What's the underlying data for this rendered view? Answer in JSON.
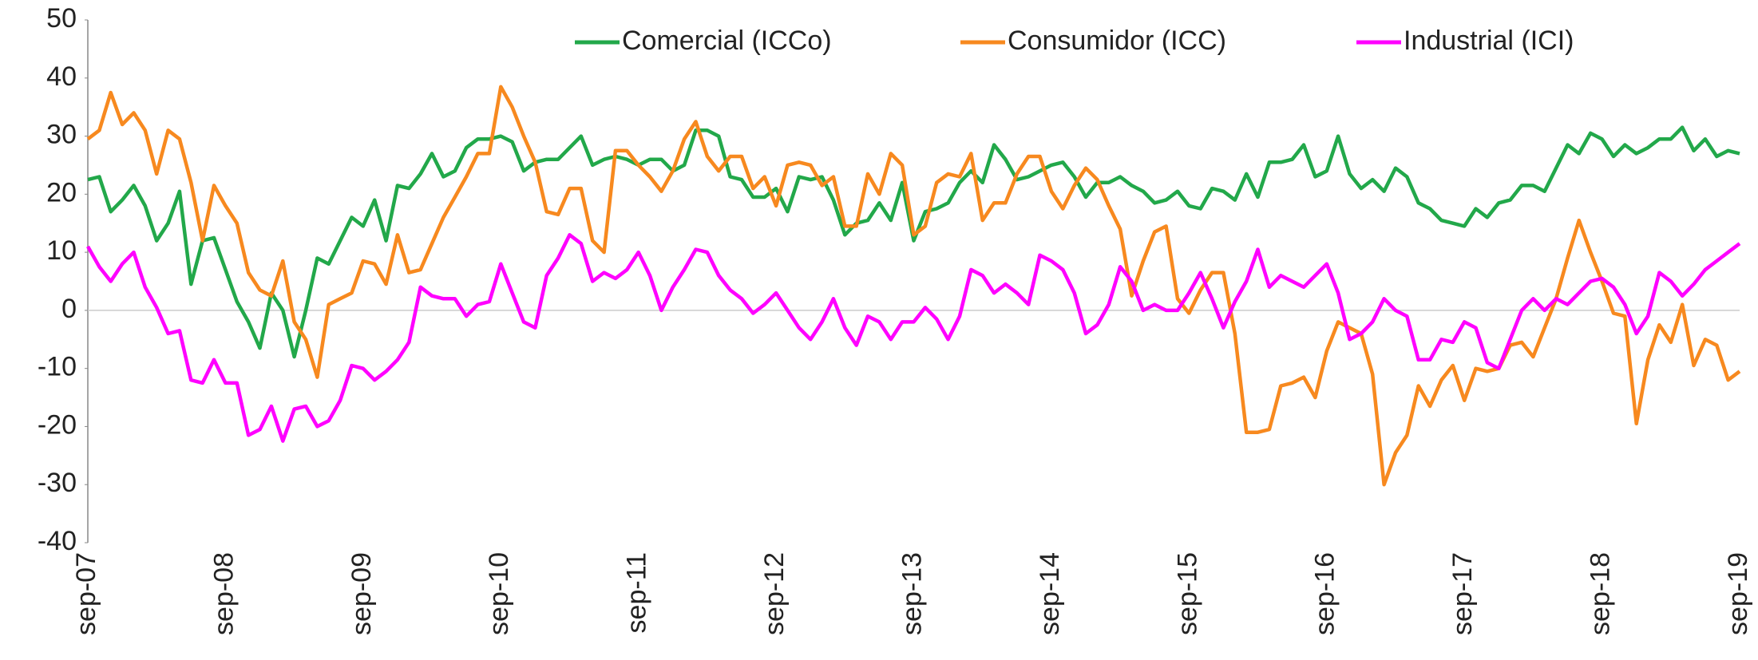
{
  "chart_data": {
    "type": "line",
    "categories": [
      "sep-07",
      null,
      null,
      null,
      null,
      null,
      null,
      null,
      null,
      null,
      null,
      null,
      "sep-08",
      null,
      null,
      null,
      null,
      null,
      null,
      null,
      null,
      null,
      null,
      null,
      "sep-09",
      null,
      null,
      null,
      null,
      null,
      null,
      null,
      null,
      null,
      null,
      null,
      "sep-10",
      null,
      null,
      null,
      null,
      null,
      null,
      null,
      null,
      null,
      null,
      null,
      "sep-11",
      null,
      null,
      null,
      null,
      null,
      null,
      null,
      null,
      null,
      null,
      null,
      "sep-12",
      null,
      null,
      null,
      null,
      null,
      null,
      null,
      null,
      null,
      null,
      null,
      "sep-13",
      null,
      null,
      null,
      null,
      null,
      null,
      null,
      null,
      null,
      null,
      null,
      "sep-14",
      null,
      null,
      null,
      null,
      null,
      null,
      null,
      null,
      null,
      null,
      null,
      "sep-15",
      null,
      null,
      null,
      null,
      null,
      null,
      null,
      null,
      null,
      null,
      null,
      "sep-16",
      null,
      null,
      null,
      null,
      null,
      null,
      null,
      null,
      null,
      null,
      null,
      "sep-17",
      null,
      null,
      null,
      null,
      null,
      null,
      null,
      null,
      null,
      null,
      null,
      "sep-18",
      null,
      null,
      null,
      null,
      null,
      null,
      null,
      null,
      null,
      null,
      null,
      "sep-19"
    ],
    "series": [
      {
        "name": "Comercial (ICCo)",
        "color": "#22a84a",
        "values": [
          22.5,
          23,
          17,
          19,
          21.5,
          18,
          12,
          15,
          20.5,
          4.5,
          12,
          12.5,
          7,
          1.5,
          -2,
          -6.5,
          3,
          0,
          -8,
          0,
          9,
          8,
          12,
          16,
          14.5,
          19,
          12,
          21.5,
          21,
          23.5,
          27,
          23,
          24,
          28,
          29.5,
          29.5,
          30,
          29,
          24,
          25.5,
          26,
          26,
          28,
          30,
          25,
          26,
          26.5,
          26,
          25,
          26,
          26,
          24,
          25,
          31,
          31,
          30,
          23,
          22.5,
          19.5,
          19.5,
          21,
          17,
          23,
          22.5,
          23,
          19,
          13,
          15,
          15.5,
          18.5,
          15.5,
          22,
          12,
          17,
          17.5,
          18.5,
          22,
          24,
          22,
          28.5,
          26,
          22.5,
          23,
          24,
          25,
          25.5,
          23,
          19.5,
          22,
          22,
          23,
          21.5,
          20.5,
          18.5,
          19,
          20.5,
          18,
          17.5,
          21,
          20.5,
          19,
          23.5,
          19.5,
          25.5,
          25.5,
          26,
          28.5,
          23,
          24,
          30,
          23.5,
          21,
          22.5,
          20.5,
          24.5,
          23,
          18.5,
          17.5,
          15.5,
          15,
          14.5,
          17.5,
          16,
          18.5,
          19,
          21.5,
          21.5,
          20.5,
          24.5,
          28.5,
          27,
          30.5,
          29.5,
          26.5,
          28.5,
          27,
          28,
          29.5,
          29.5,
          31.5,
          27.5,
          29.5,
          26.5,
          27.5,
          27
        ]
      },
      {
        "name": "Consumidor (ICC)",
        "color": "#f7891f",
        "values": [
          29.5,
          31,
          37.5,
          32,
          34,
          31,
          23.5,
          31,
          29.5,
          22,
          12,
          21.5,
          18,
          15,
          6.5,
          3.5,
          2.5,
          8.5,
          -2,
          -5,
          -11.5,
          1,
          2,
          3,
          8.5,
          8,
          4.5,
          13,
          6.5,
          7,
          11.5,
          16,
          19.5,
          23,
          27,
          27,
          38.5,
          35,
          30,
          25.5,
          17,
          16.5,
          21,
          21,
          12,
          10,
          27.5,
          27.5,
          25,
          23,
          20.5,
          24,
          29.5,
          32.5,
          26.5,
          24,
          26.5,
          26.5,
          21,
          23,
          18,
          25,
          25.5,
          25,
          21.5,
          23,
          14.5,
          14.5,
          23.5,
          20,
          27,
          25,
          13,
          14.5,
          22,
          23.5,
          23,
          27,
          15.5,
          18.5,
          18.5,
          23.5,
          26.5,
          26.5,
          20.5,
          17.5,
          21.5,
          24.5,
          22.5,
          18,
          14,
          2.5,
          8.5,
          13.5,
          14.5,
          2,
          -0.5,
          3.5,
          6.5,
          6.5,
          -4,
          -21,
          -21,
          -20.5,
          -13,
          -12.5,
          -11.5,
          -15,
          -7,
          -2,
          -3,
          -4,
          -11,
          -30,
          -24.5,
          -21.5,
          -13,
          -16.5,
          -12,
          -9.5,
          -15.5,
          -10,
          -10.5,
          -10,
          -6,
          -5.5,
          -8,
          -3,
          2,
          9,
          15.5,
          10,
          5,
          -0.5,
          -1,
          -19.5,
          -8.5,
          -2.5,
          -5.5,
          1,
          -9.5,
          -5,
          -6,
          -12,
          -10.5
        ]
      },
      {
        "name": "Industrial (ICI)",
        "color": "#ff00ff",
        "values": [
          11,
          7.5,
          5,
          8,
          10,
          4,
          0.5,
          -4,
          -3.5,
          -12,
          -12.5,
          -8.5,
          -12.5,
          -12.5,
          -21.5,
          -20.5,
          -16.5,
          -22.5,
          -17,
          -16.5,
          -20,
          -19,
          -15.5,
          -9.5,
          -10,
          -12,
          -10.5,
          -8.5,
          -5.5,
          4,
          2.5,
          2,
          2,
          -1,
          1,
          1.5,
          8,
          3,
          -2,
          -3,
          6,
          9,
          13,
          11.5,
          5,
          6.5,
          5.5,
          7,
          10,
          6,
          0,
          4,
          7,
          10.5,
          10,
          6,
          3.5,
          2,
          -0.5,
          1,
          3,
          0,
          -3,
          -5,
          -2,
          2,
          -3,
          -6,
          -1,
          -2,
          -5,
          -2,
          -2,
          0.5,
          -1.5,
          -5,
          -1,
          7,
          6,
          3,
          4.5,
          3,
          1,
          9.5,
          8.5,
          7,
          3,
          -4,
          -2.5,
          1,
          7.5,
          5,
          0,
          1,
          0,
          0,
          3,
          6.5,
          2,
          -3,
          1.5,
          5,
          10.5,
          4,
          6,
          5,
          4,
          6,
          8,
          3,
          -5,
          -4,
          -2,
          2,
          0,
          -1,
          -8.5,
          -8.5,
          -5,
          -5.5,
          -2,
          -3,
          -9,
          -10,
          -5,
          0,
          2,
          0,
          2,
          1,
          3,
          5,
          5.5,
          4,
          1,
          -4,
          -1,
          6.5,
          5,
          2.5,
          4.5,
          7,
          8.5,
          10,
          11.5
        ]
      }
    ],
    "ylim": [
      -40,
      50
    ],
    "yticks": [
      -40,
      -30,
      -20,
      -10,
      0,
      10,
      20,
      30,
      40,
      50
    ],
    "legend": "top"
  }
}
